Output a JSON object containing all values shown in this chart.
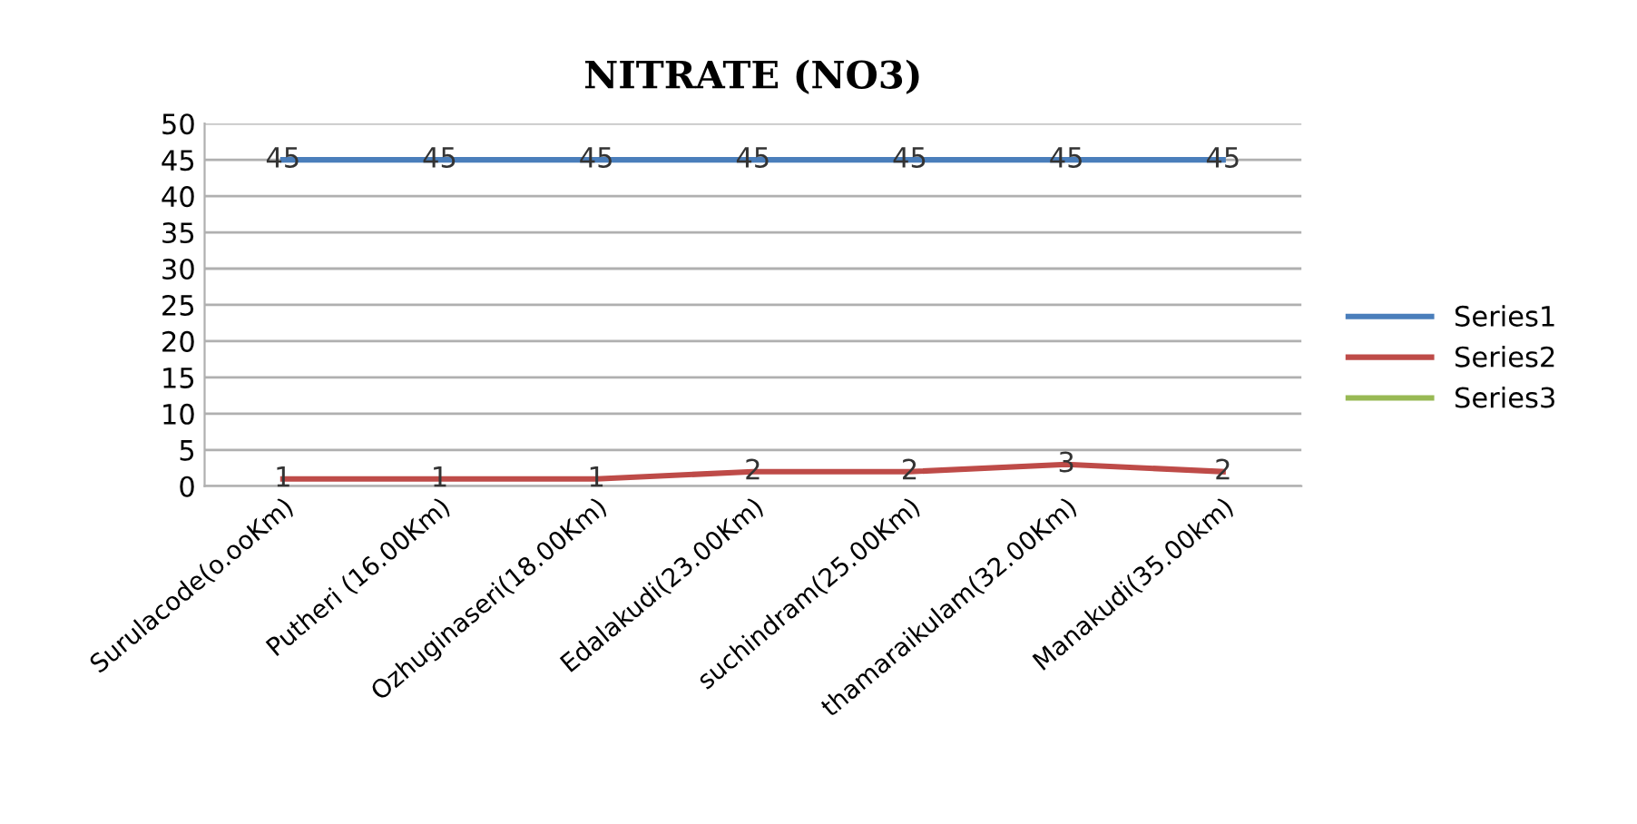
{
  "chart_data": {
    "type": "line",
    "title": "NITRATE (NO3)",
    "categories": [
      "Surulacode(o.ooKm)",
      "Putheri (16.00Km)",
      "Ozhuginaseri(18.00Km)",
      "Edalakudi(23.00Km)",
      "suchindram(25.00Km)",
      "thamaraikulam(32.00Km)",
      "Manakudi(35.00km)"
    ],
    "series": [
      {
        "name": "Series1",
        "color": "#4a7ebb",
        "values": [
          45,
          45,
          45,
          45,
          45,
          45,
          45
        ]
      },
      {
        "name": "Series2",
        "color": "#be4b48",
        "values": [
          1,
          1,
          1,
          2,
          2,
          3,
          2
        ]
      },
      {
        "name": "Series3",
        "color": "#98b954",
        "values": [
          null,
          null,
          null,
          null,
          null,
          null,
          null
        ]
      }
    ],
    "ylim": [
      0,
      50
    ],
    "yticks": [
      0,
      5,
      10,
      15,
      20,
      25,
      30,
      35,
      40,
      45,
      50
    ],
    "grid": "y",
    "legend": "right",
    "data_labels": true,
    "marker": "none"
  }
}
